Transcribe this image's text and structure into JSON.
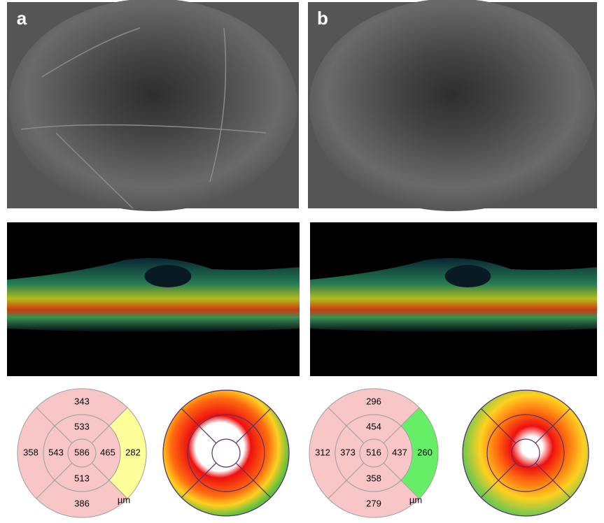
{
  "panels": [
    {
      "label": "a",
      "grid": {
        "center": 586,
        "inner": {
          "top": 533,
          "right": 465,
          "bottom": 513,
          "left": 543
        },
        "outer": {
          "top": 343,
          "right": 282,
          "bottom": 386,
          "left": 358
        },
        "unit": "µm",
        "inner_color": "#f8c6c6",
        "outer_colors": {
          "top": "#f8c6c6",
          "right": "#ffff99",
          "bottom": "#f8c6c6",
          "left": "#f8c6c6"
        }
      }
    },
    {
      "label": "b",
      "grid": {
        "center": 516,
        "inner": {
          "top": 454,
          "right": 437,
          "bottom": 358,
          "left": 373
        },
        "outer": {
          "top": 296,
          "right": 260,
          "bottom": 279,
          "left": 312
        },
        "unit": "µm",
        "inner_color": "#f8c6c6",
        "outer_colors": {
          "top": "#f8c6c6",
          "right": "#66ee66",
          "bottom": "#f8c6c6",
          "left": "#f8c6c6"
        }
      }
    }
  ]
}
